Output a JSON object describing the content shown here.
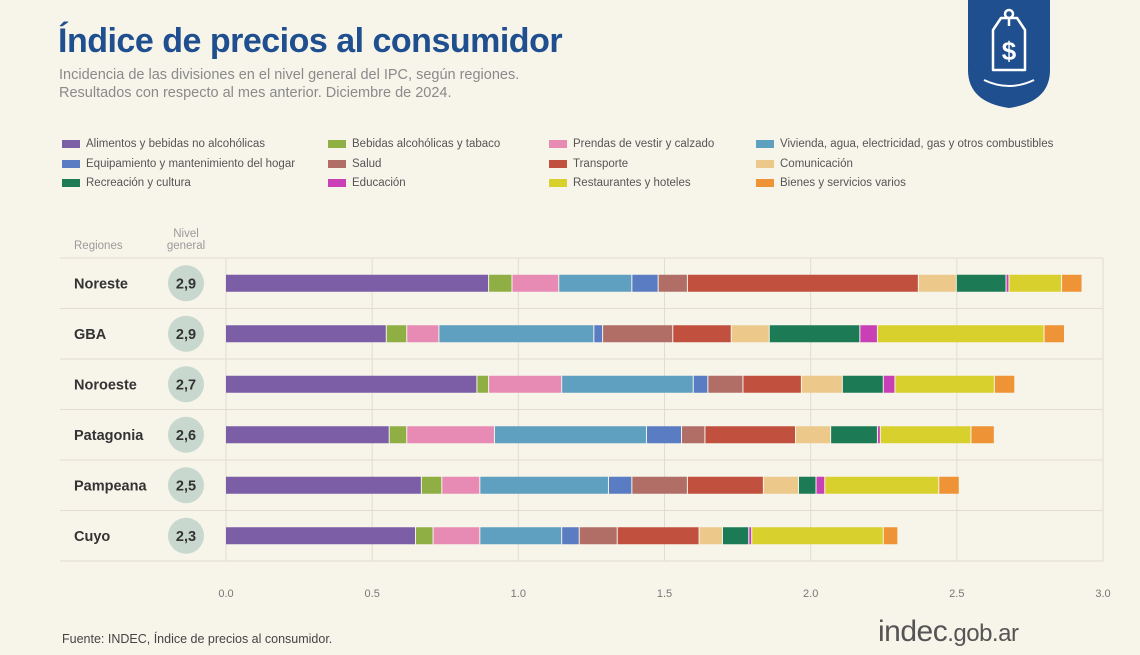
{
  "header": {
    "title": "Índice de precios al consumidor",
    "subtitle_line1": "Incidencia de las divisiones en el nivel general del IPC, según regiones.",
    "subtitle_line2": "Resultados con respecto al mes anterior. Diciembre de 2024."
  },
  "badge": {
    "icon": "price-tag-dollar-icon",
    "color": "#1f4f8f"
  },
  "table_headers": {
    "regiones": "Regiones",
    "nivel_line1": "Nivel",
    "nivel_line2": "general"
  },
  "footer": {
    "source": "Fuente: INDEC, Índice de precios al consumidor.",
    "brand_main": "indec",
    "brand_suffix": ".gob.ar"
  },
  "chart_data": {
    "type": "bar",
    "orientation": "horizontal",
    "stacked": true,
    "categories": [
      "Noreste",
      "GBA",
      "Noroeste",
      "Patagonia",
      "Pampeana",
      "Cuyo"
    ],
    "nivel_general": [
      "2,9",
      "2,9",
      "2,7",
      "2,6",
      "2,5",
      "2,3"
    ],
    "xlim": [
      0,
      3.0
    ],
    "x_ticks": [
      "0.0",
      "0.5",
      "1.0",
      "1.5",
      "2.0",
      "2.5",
      "3.0"
    ],
    "grid": true,
    "legend_position": "top",
    "series": [
      {
        "name": "Alimentos y bebidas no alcohólicas",
        "color": "#7b5ea6",
        "values": [
          0.9,
          0.55,
          0.86,
          0.56,
          0.67,
          0.65
        ]
      },
      {
        "name": "Bebidas alcohólicas y tabaco",
        "color": "#8fae44",
        "values": [
          0.08,
          0.07,
          0.04,
          0.06,
          0.07,
          0.06
        ]
      },
      {
        "name": "Prendas de vestir y calzado",
        "color": "#e88bb4",
        "values": [
          0.16,
          0.11,
          0.25,
          0.3,
          0.13,
          0.16
        ]
      },
      {
        "name": "Vivienda, agua, electricidad, gas y otros combustibles",
        "color": "#5f9fbf",
        "values": [
          0.25,
          0.53,
          0.45,
          0.52,
          0.44,
          0.28
        ]
      },
      {
        "name": "Equipamiento y mantenimiento del hogar",
        "color": "#5a7cc2",
        "values": [
          0.09,
          0.03,
          0.05,
          0.12,
          0.08,
          0.06
        ]
      },
      {
        "name": "Salud",
        "color": "#b06e66",
        "values": [
          0.1,
          0.24,
          0.12,
          0.08,
          0.19,
          0.13
        ]
      },
      {
        "name": "Transporte",
        "color": "#c2503f",
        "values": [
          0.79,
          0.2,
          0.2,
          0.31,
          0.26,
          0.28
        ]
      },
      {
        "name": "Comunicación",
        "color": "#ecc98b",
        "values": [
          0.13,
          0.13,
          0.14,
          0.12,
          0.12,
          0.08
        ]
      },
      {
        "name": "Recreación y cultura",
        "color": "#1c7a55",
        "values": [
          0.17,
          0.31,
          0.14,
          0.16,
          0.06,
          0.09
        ]
      },
      {
        "name": "Educación",
        "color": "#c93fb6",
        "values": [
          0.01,
          0.06,
          0.04,
          0.01,
          0.03,
          0.01
        ]
      },
      {
        "name": "Restaurantes y hoteles",
        "color": "#d8d02c",
        "values": [
          0.18,
          0.57,
          0.34,
          0.31,
          0.39,
          0.45
        ]
      },
      {
        "name": "Bienes y servicios varios",
        "color": "#ee9436",
        "values": [
          0.07,
          0.07,
          0.07,
          0.08,
          0.07,
          0.05
        ]
      }
    ]
  }
}
